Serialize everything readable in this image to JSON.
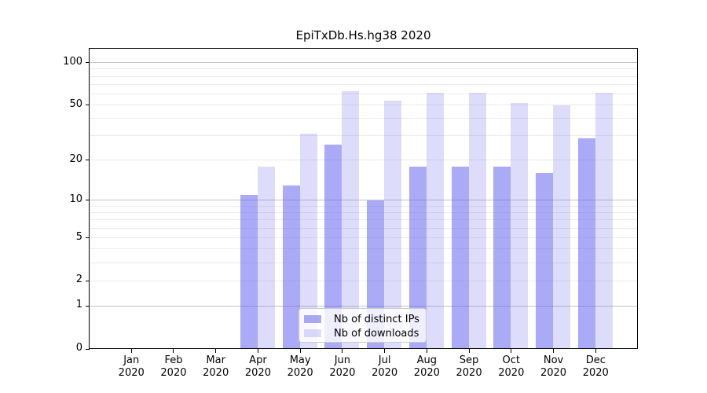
{
  "chart_data": {
    "type": "bar",
    "title": "EpiTxDb.Hs.hg38 2020",
    "categories": [
      {
        "month": "Jan",
        "year": "2020"
      },
      {
        "month": "Feb",
        "year": "2020"
      },
      {
        "month": "Mar",
        "year": "2020"
      },
      {
        "month": "Apr",
        "year": "2020"
      },
      {
        "month": "May",
        "year": "2020"
      },
      {
        "month": "Jun",
        "year": "2020"
      },
      {
        "month": "Jul",
        "year": "2020"
      },
      {
        "month": "Aug",
        "year": "2020"
      },
      {
        "month": "Sep",
        "year": "2020"
      },
      {
        "month": "Oct",
        "year": "2020"
      },
      {
        "month": "Nov",
        "year": "2020"
      },
      {
        "month": "Dec",
        "year": "2020"
      }
    ],
    "series": [
      {
        "key": "distinct-ips",
        "name": "Nb of distinct IPs",
        "color_hex": "#6464ee",
        "alpha": 0.55,
        "rgba": "rgba(100,100,238,0.55)",
        "values": [
          0,
          0,
          0,
          11,
          13,
          26,
          10,
          18,
          18,
          18,
          16,
          29
        ]
      },
      {
        "key": "downloads",
        "name": "Nb of downloads",
        "color_hex": "#6464ee",
        "alpha": 0.22,
        "rgba": "rgba(100,100,238,0.22)",
        "values": [
          0,
          0,
          0,
          18,
          31,
          63,
          54,
          61,
          61,
          52,
          50,
          61
        ]
      }
    ],
    "yscale": "log1p",
    "ylim": [
      0,
      127
    ],
    "y_tick_values": [
      0,
      1,
      2,
      5,
      10,
      20,
      50,
      100
    ],
    "y_tick_labels": [
      "0",
      "1",
      "2",
      "5",
      "10",
      "20",
      "50",
      "100"
    ],
    "y_gridlines_major": [
      1,
      10,
      100
    ],
    "y_gridlines_minor": [
      2,
      3,
      4,
      5,
      6,
      7,
      8,
      9,
      20,
      30,
      40,
      50,
      60,
      70,
      80,
      90
    ],
    "grid": true,
    "legend_position": "lower-center"
  },
  "colors": {
    "background": "#ffffff",
    "bar_distinct_ips_blended": "#a9a9f4",
    "bar_downloads_blended": "#dcdcf8",
    "grid_major": "#c4c4c4",
    "grid_minor": "#ececec",
    "axis_spine": "#000000",
    "tick_mark": "#000000",
    "text": "#000000",
    "legend_border": "#cccccc",
    "legend_background": "rgba(255,255,255,0.8)"
  }
}
